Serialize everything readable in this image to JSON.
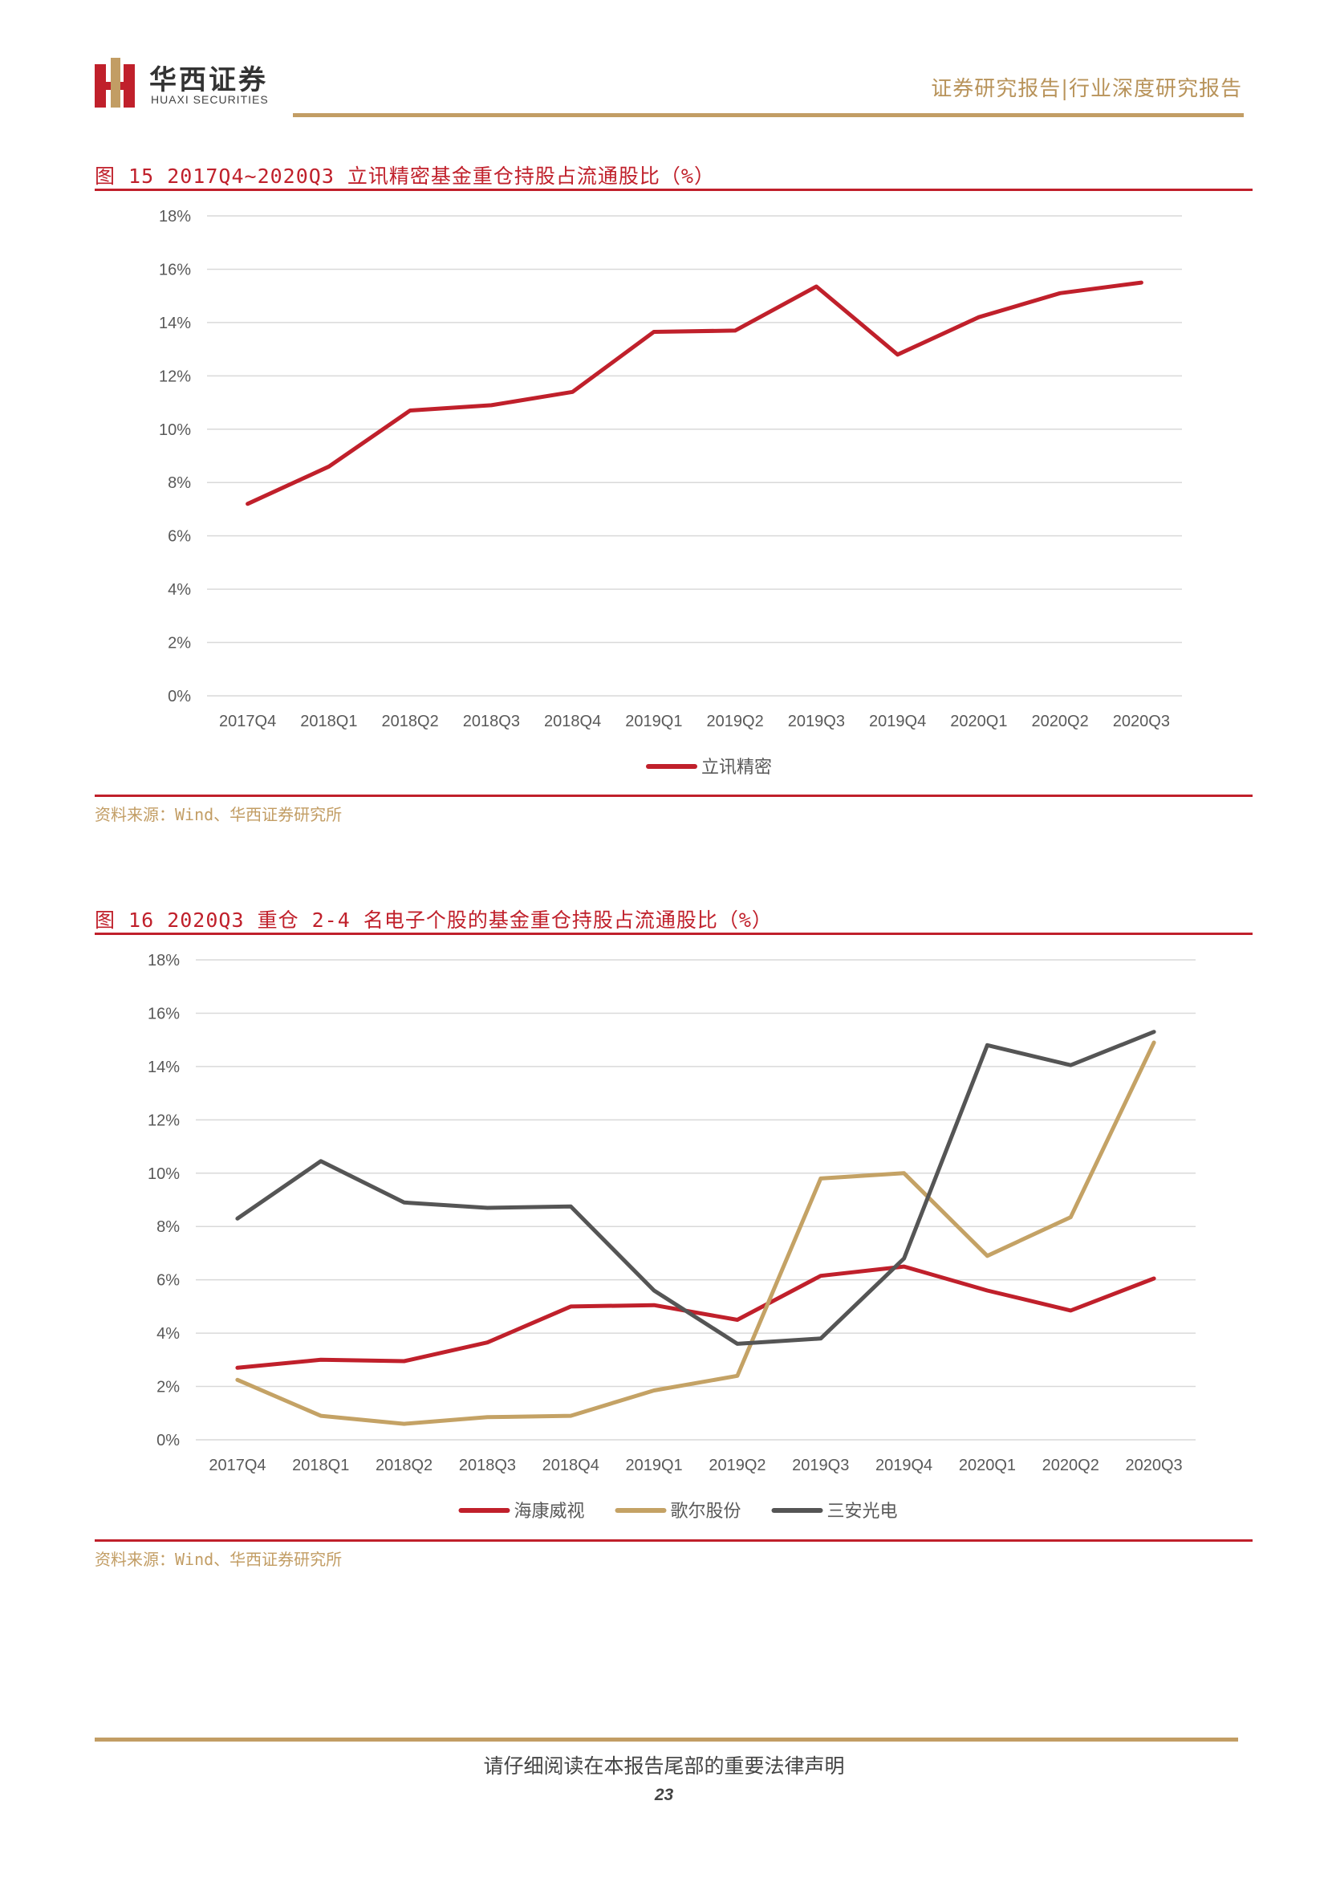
{
  "header": {
    "brand_cn": "华西证券",
    "brand_en": "HUAXI SECURITIES",
    "report_type": "证券研究报告|行业深度研究报告"
  },
  "figures": [
    {
      "title": "图 15 2017Q4~2020Q3 立讯精密基金重仓持股占流通股比（%）",
      "source": "资料来源：Wind、华西证券研究所"
    },
    {
      "title": "图 16 2020Q3 重仓 2-4 名电子个股的基金重仓持股占流通股比（%）",
      "source": "资料来源：Wind、华西证券研究所"
    }
  ],
  "chart_data": [
    {
      "type": "line",
      "categories": [
        "2017Q4",
        "2018Q1",
        "2018Q2",
        "2018Q3",
        "2018Q4",
        "2019Q1",
        "2019Q2",
        "2019Q3",
        "2019Q4",
        "2020Q1",
        "2020Q2",
        "2020Q3"
      ],
      "series": [
        {
          "name": "立讯精密",
          "color": "#c0202b",
          "values": [
            7.2,
            8.6,
            10.7,
            10.9,
            11.4,
            13.65,
            13.7,
            15.35,
            12.8,
            14.2,
            15.1,
            15.5
          ]
        }
      ],
      "ylim": [
        0,
        18
      ],
      "yticks": [
        "0%",
        "2%",
        "4%",
        "6%",
        "8%",
        "10%",
        "12%",
        "14%",
        "16%",
        "18%"
      ],
      "grid": true,
      "legend": "bottom"
    },
    {
      "type": "line",
      "categories": [
        "2017Q4",
        "2018Q1",
        "2018Q2",
        "2018Q3",
        "2018Q4",
        "2019Q1",
        "2019Q2",
        "2019Q3",
        "2019Q4",
        "2020Q1",
        "2020Q2",
        "2020Q3"
      ],
      "series": [
        {
          "name": "海康威视",
          "color": "#c0202b",
          "values": [
            2.7,
            3.0,
            2.95,
            3.65,
            5.0,
            5.05,
            4.5,
            6.15,
            6.5,
            5.6,
            4.85,
            6.05
          ]
        },
        {
          "name": "歌尔股份",
          "color": "#c4a265",
          "values": [
            2.25,
            0.9,
            0.6,
            0.85,
            0.9,
            1.85,
            2.4,
            9.8,
            10.0,
            6.9,
            8.35,
            14.9
          ]
        },
        {
          "name": "三安光电",
          "color": "#555555",
          "values": [
            8.3,
            10.45,
            8.9,
            8.7,
            8.75,
            5.6,
            3.6,
            3.8,
            6.8,
            14.8,
            14.05,
            15.3
          ]
        }
      ],
      "ylim": [
        0,
        18
      ],
      "yticks": [
        "0%",
        "2%",
        "4%",
        "6%",
        "8%",
        "10%",
        "12%",
        "14%",
        "16%",
        "18%"
      ],
      "grid": true,
      "legend": "bottom"
    }
  ],
  "footer": {
    "disclaimer": "请仔细阅读在本报告尾部的重要法律声明",
    "page": "23"
  }
}
